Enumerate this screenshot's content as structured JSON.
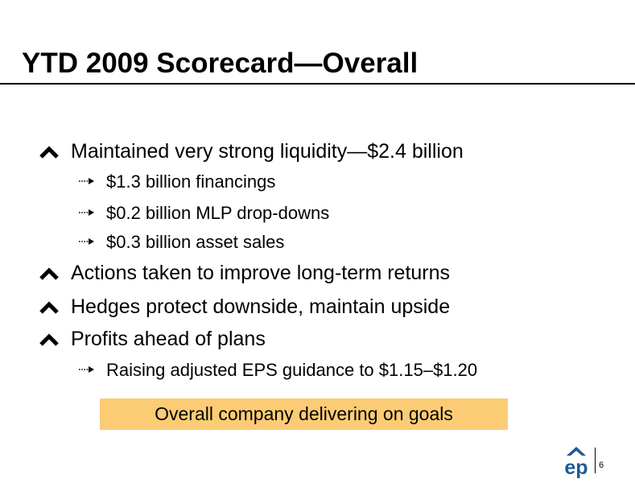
{
  "slide": {
    "title": "YTD 2009 Scorecard—Overall",
    "page_number": "6"
  },
  "bullets": [
    {
      "level": 1,
      "icon": "chevron-up-icon",
      "text": "Maintained very strong liquidity—$2.4 billion"
    },
    {
      "level": 2,
      "icon": "dotted-arrow-icon",
      "text": "$1.3 billion financings"
    },
    {
      "level": 2,
      "icon": "dotted-arrow-icon",
      "text": "$0.2 billion MLP drop-downs"
    },
    {
      "level": 2,
      "icon": "dotted-arrow-icon",
      "text": "$0.3 billion asset sales"
    },
    {
      "level": 1,
      "icon": "chevron-up-icon",
      "text": "Actions taken to improve long-term returns"
    },
    {
      "level": 1,
      "icon": "chevron-up-icon",
      "text": "Hedges protect downside, maintain upside"
    },
    {
      "level": 1,
      "icon": "chevron-up-icon",
      "text": "Profits ahead of plans"
    },
    {
      "level": 2,
      "icon": "dotted-arrow-icon",
      "text": "Raising adjusted EPS guidance to $1.15–$1.20"
    }
  ],
  "callout": {
    "text": "Overall company delivering on goals"
  },
  "logo": {
    "icon": "ep-logo",
    "text": "ep"
  },
  "colors": {
    "callout_background": "#fccc75",
    "logo_blue": "#1f5a96",
    "text": "#000000"
  }
}
